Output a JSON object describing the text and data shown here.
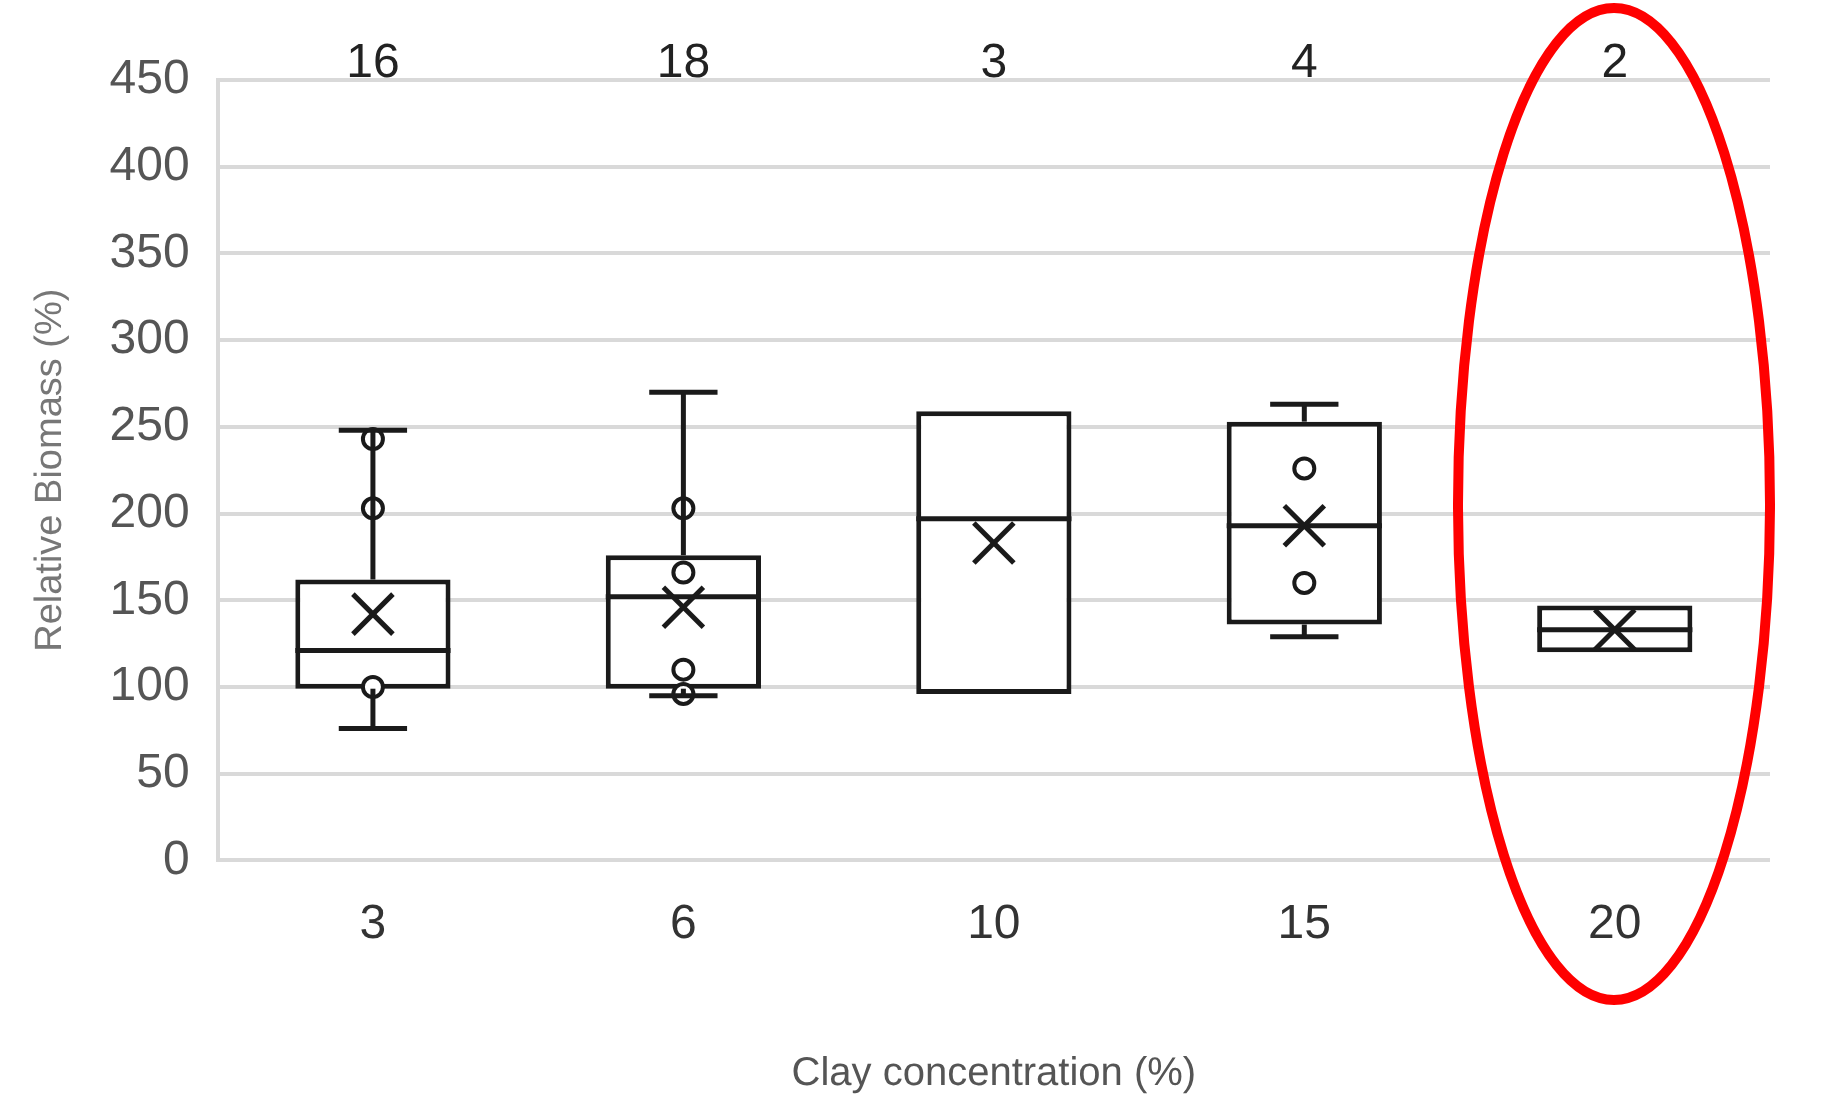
{
  "chart_data": {
    "type": "box",
    "xlabel": "Clay concentration (%)",
    "ylabel": "Relative Biomass (%)",
    "categories": [
      "3",
      "6",
      "10",
      "15",
      "20"
    ],
    "ylim": [
      0,
      450
    ],
    "yticks": [
      0,
      50,
      100,
      150,
      200,
      250,
      300,
      350,
      400,
      450
    ],
    "grid": "y",
    "legend": false,
    "marker": "circle",
    "series": [
      {
        "color": "#1a1a1a",
        "boxes": [
          {
            "low": 76,
            "q1": 99,
            "median": 121,
            "q3": 162,
            "high": 248,
            "mean": 142
          },
          {
            "low": 95,
            "q1": 99,
            "median": 152,
            "q3": 176,
            "high": 270,
            "mean": 146
          },
          {
            "low": 96,
            "q1": 96,
            "median": 197,
            "q3": 259,
            "high": 259,
            "mean": 183
          },
          {
            "low": 129,
            "q1": 136,
            "median": 193,
            "q3": 253,
            "high": 263,
            "mean": 193
          },
          {
            "low": 120,
            "q1": 120,
            "median": 133,
            "q3": 147,
            "high": 147,
            "mean": 133
          }
        ]
      },
      {
        "type": "scatter",
        "color": "#1a1a1a",
        "x": [
          "3",
          "3",
          "3",
          "6",
          "6",
          "6",
          "6",
          "15",
          "15"
        ],
        "values": [
          243,
          203,
          100,
          203,
          166,
          110,
          96,
          226,
          160
        ]
      }
    ],
    "annotations": [
      "16",
      "18",
      "3",
      "4",
      "2"
    ]
  }
}
